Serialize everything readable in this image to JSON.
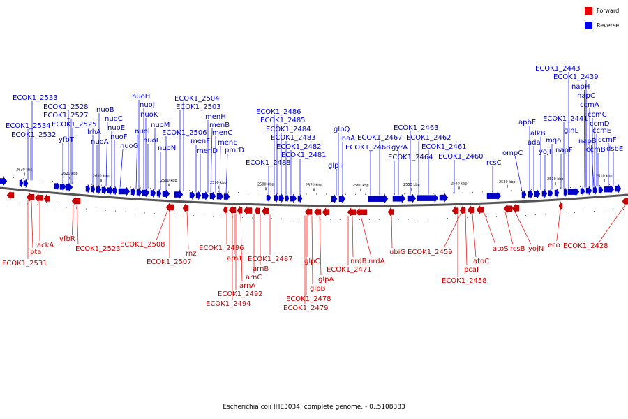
{
  "legend": {
    "items": [
      {
        "label": "Forward",
        "color": "#ee0000"
      },
      {
        "label": "Reverse",
        "color": "#0000ee"
      }
    ]
  },
  "caption": "Escherichia coli IHE3034, complete genome. - 0..5108383",
  "colors": {
    "forward": "#ee0000",
    "reverse": "#0000ee",
    "backbone": "#555555"
  },
  "ticks": [
    "2630 kbp",
    "2620 kbp",
    "2610 kbp",
    "2600 kbp",
    "2590 kbp",
    "2580 kbp",
    "2570 kbp",
    "2560 kbp",
    "2550 kbp",
    "2540 kbp",
    "2530 kbp",
    "2520 kbp",
    "2510 kbp"
  ],
  "reverse_labels": [
    "ECOK1_2534",
    "ECOK1_2532",
    "ECOK1_2533",
    "ECOK1_2528",
    "ECOK1_2527",
    "ECOK1_2525",
    "yfbT",
    "lrhA",
    "nuoA",
    "nuoB",
    "nuoC",
    "nuoE",
    "nuoF",
    "nuoG",
    "nuoH",
    "nuoJ",
    "nuoK",
    "nuoI",
    "nuoL",
    "nuoM",
    "nuoN",
    "ECOK1_2506",
    "ECOK1_2504",
    "ECOK1_2503",
    "menF",
    "menD",
    "menH",
    "menB",
    "menC",
    "menE",
    "pmrD",
    "ECOK1_2488",
    "ECOK1_2486",
    "ECOK1_2485",
    "ECOK1_2484",
    "ECOK1_2483",
    "ECOK1_2482",
    "ECOK1_2481",
    "glpT",
    "glpQ",
    "inaA",
    "ECOK1_2468",
    "ECOK1_2467",
    "gyrA",
    "ECOK1_2464",
    "ECOK1_2463",
    "ECOK1_2462",
    "ECOK1_2461",
    "ECOK1_2460",
    "rcsC",
    "ompC",
    "apbE",
    "ada",
    "alkB",
    "yojI",
    "mqo",
    "napF",
    "ECOK1_2443",
    "ECOK1_2439",
    "ECOK1_2441",
    "glnL",
    "napH",
    "napC",
    "ccmA",
    "ccmC",
    "ccmD",
    "ccmE",
    "napB",
    "ccmB",
    "ccmF",
    "dsbE"
  ],
  "forward_labels": [
    "ECOK1_2531",
    "pta",
    "ackA",
    "yfbR",
    "ECOK1_2523",
    "ECOK1_2508",
    "ECOK1_2507",
    "rnz",
    "ECOK1_2496",
    "arnT",
    "ECOK1_2487",
    "arnB",
    "arnC",
    "arnA",
    "ECOK1_2492",
    "ECOK1_2494",
    "glpC",
    "glpB",
    "glpA",
    "ECOK1_2478",
    "ECOK1_2479",
    "ECOK1_2471",
    "nrdB",
    "nrdA",
    "ubiG",
    "ECOK1_2459",
    "pcaI",
    "ECOK1_2458",
    "atoC",
    "atoS",
    "rcsB",
    "yojN",
    "eco",
    "ECOK1_2428"
  ]
}
